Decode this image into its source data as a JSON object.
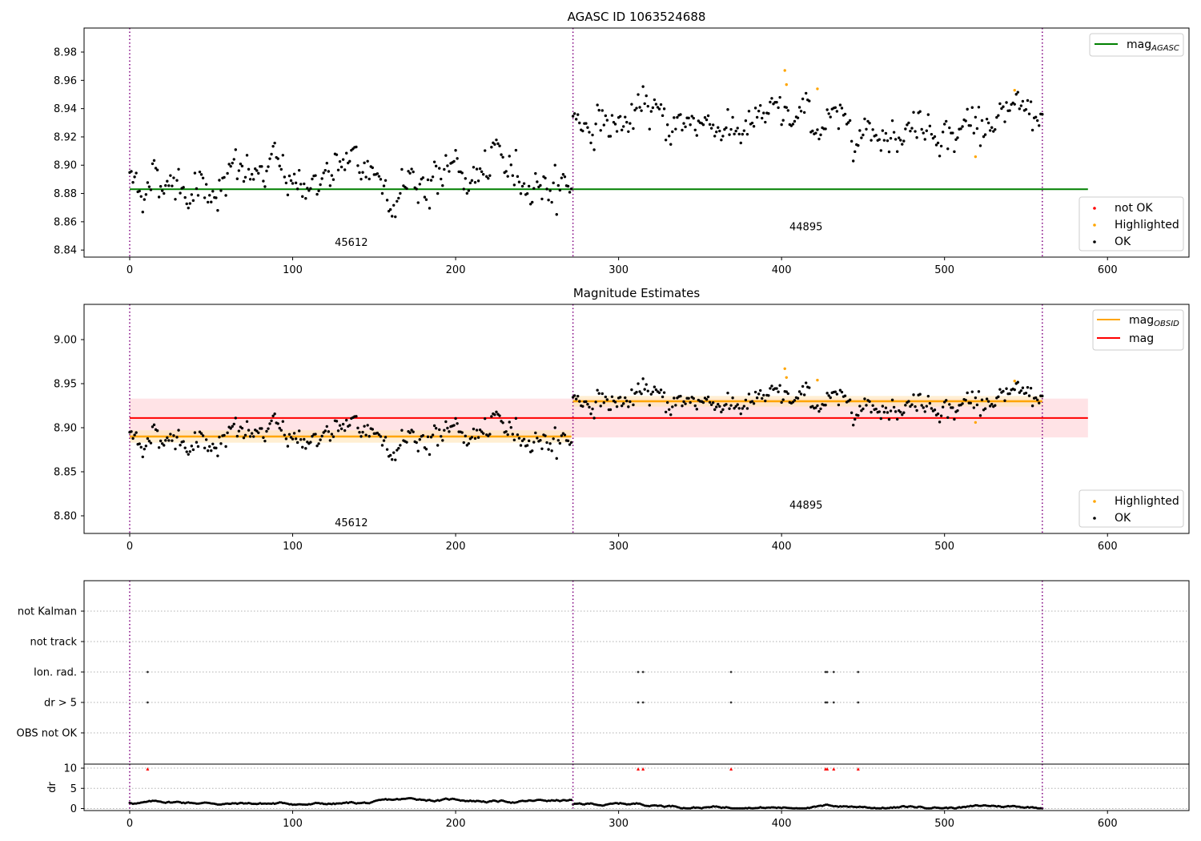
{
  "colors": {
    "point_ok": "#000000",
    "point_highlighted": "#ffa500",
    "point_not_ok": "#ff0000",
    "mag_agasc_line": "#008000",
    "mag_obsid_line": "#ffa500",
    "mag_line": "#ff0000",
    "mag_band": "#ffc0c8",
    "obsid_band": "#ffe4b5",
    "obs_boundary": "#800080",
    "grid": "#b0b0b0"
  },
  "chart_data": [
    {
      "id": "agasc",
      "type": "scatter",
      "title": "AGASC ID 1063524688",
      "xlim": [
        -28,
        650
      ],
      "ylim": [
        8.835,
        8.997
      ],
      "xticks": [
        0,
        100,
        200,
        300,
        400,
        500,
        600
      ],
      "yticks": [
        8.84,
        8.86,
        8.88,
        8.9,
        8.92,
        8.94,
        8.96,
        8.98
      ],
      "ytick_labels": [
        "8.84",
        "8.86",
        "8.88",
        "8.90",
        "8.92",
        "8.94",
        "8.96",
        "8.98"
      ],
      "mag_agasc": 8.883,
      "mag_agasc_x_range": [
        0,
        588
      ],
      "obs_boundaries": [
        0,
        272,
        560
      ],
      "obs_labels": [
        {
          "text": "45612",
          "x": 136,
          "y": 8.843
        },
        {
          "text": "44895",
          "x": 415,
          "y": 8.854
        }
      ],
      "legend_top": {
        "placement": "upper right",
        "entries": [
          {
            "label": "mag",
            "sub": "AGASC"
          }
        ]
      },
      "legend_bottom": {
        "placement": "lower right",
        "entries": [
          {
            "label": "not OK",
            "color": "point_not_ok"
          },
          {
            "label": "Highlighted",
            "color": "point_highlighted"
          },
          {
            "label": "OK",
            "color": "point_ok"
          }
        ]
      },
      "series_generator": {
        "segments": [
          {
            "x_range": [
              0,
              271
            ],
            "mean": 8.891,
            "amplitude": 0.012
          },
          {
            "x_range": [
              272,
              560
            ],
            "mean": 8.931,
            "amplitude": 0.01
          }
        ],
        "highlighted": [
          {
            "x": 402,
            "y": 8.967
          },
          {
            "x": 403,
            "y": 8.957
          },
          {
            "x": 422,
            "y": 8.954
          },
          {
            "x": 519,
            "y": 8.906
          },
          {
            "x": 543,
            "y": 8.953
          }
        ]
      }
    },
    {
      "id": "estimates",
      "type": "scatter",
      "title": "Magnitude Estimates",
      "xlim": [
        -28,
        650
      ],
      "ylim": [
        8.78,
        9.04
      ],
      "xticks": [
        0,
        100,
        200,
        300,
        400,
        500,
        600
      ],
      "yticks": [
        8.8,
        8.85,
        8.9,
        8.95,
        9.0
      ],
      "ytick_labels": [
        "8.80",
        "8.85",
        "8.90",
        "8.95",
        "9.00"
      ],
      "mag": 8.911,
      "mag_band": [
        8.889,
        8.933
      ],
      "mag_x_range": [
        0,
        588
      ],
      "mag_obsid": [
        {
          "x_range": [
            0,
            271
          ],
          "value": 8.89,
          "band": [
            8.883,
            8.897
          ]
        },
        {
          "x_range": [
            272,
            560
          ],
          "value": 8.93,
          "band": [
            8.924,
            8.936
          ]
        }
      ],
      "obs_boundaries": [
        0,
        272,
        560
      ],
      "obs_labels": [
        {
          "text": "45612",
          "x": 136,
          "y": 8.788
        },
        {
          "text": "44895",
          "x": 415,
          "y": 8.808
        }
      ],
      "legend_top": {
        "placement": "upper right",
        "entries": [
          {
            "label": "mag",
            "sub": "OBSID",
            "color": "mag_obsid_line"
          },
          {
            "label": "mag",
            "color": "mag_line"
          }
        ]
      },
      "legend_bottom": {
        "placement": "lower right",
        "entries": [
          {
            "label": "Highlighted",
            "color": "point_highlighted"
          },
          {
            "label": "OK",
            "color": "point_ok"
          }
        ]
      }
    },
    {
      "id": "flags",
      "type": "scatter",
      "xlim": [
        -28,
        650
      ],
      "category_labels": [
        "not Kalman",
        "not track",
        "Ion. rad.",
        "dr > 5",
        "OBS not OK"
      ],
      "flag_points": {
        "Ion. rad.": [
          11,
          312,
          315,
          369,
          427,
          428,
          432,
          447
        ],
        "dr > 5": [
          11,
          312,
          315,
          369,
          427,
          428,
          432,
          447
        ]
      },
      "obs_boundaries": [
        0,
        272,
        560
      ]
    },
    {
      "id": "dr",
      "type": "scatter",
      "xlim": [
        -28,
        650
      ],
      "ylim": [
        -0.5,
        11.0
      ],
      "ylabel": "dr",
      "yticks": [
        0,
        5,
        10
      ],
      "ytick_labels": [
        "0",
        "5",
        "10"
      ],
      "xticks": [
        0,
        100,
        200,
        300,
        400,
        500,
        600
      ],
      "xtick_labels": [
        "0",
        "100",
        "200",
        "300",
        "400",
        "500",
        "600"
      ],
      "clipped_markers_x": [
        11,
        312,
        315,
        369,
        427,
        428,
        432,
        447
      ],
      "clipped_marker_y": 9.8,
      "obs_boundaries": [
        0,
        272,
        560
      ]
    }
  ]
}
